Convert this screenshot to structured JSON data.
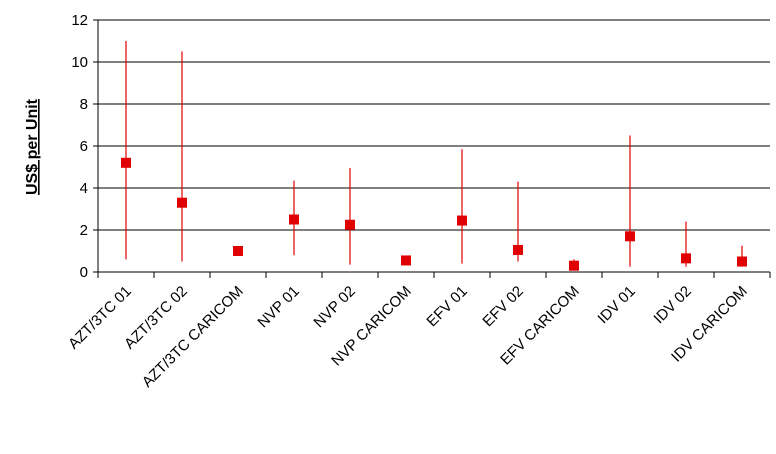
{
  "chart_data": {
    "type": "scatter",
    "title": "",
    "xlabel": "",
    "ylabel": "US$ per Unit",
    "ylim": [
      0,
      12
    ],
    "yticks": [
      0,
      2,
      4,
      6,
      8,
      10,
      12
    ],
    "grid": true,
    "categories": [
      "AZT/3TC 01",
      "AZT/3TC 02",
      "AZT/3TC CARICOM",
      "NVP 01",
      "NVP 02",
      "NVP CARICOM",
      "EFV 01",
      "EFV 02",
      "EFV CARICOM",
      "IDV 01",
      "IDV 02",
      "IDV CARICOM"
    ],
    "series": [
      {
        "values": [
          5.2,
          3.3,
          1.0,
          2.5,
          2.25,
          0.55,
          2.45,
          1.05,
          0.3,
          1.7,
          0.65,
          0.5
        ],
        "low": [
          0.6,
          0.5,
          null,
          0.8,
          0.35,
          0.35,
          0.4,
          0.5,
          0.1,
          0.25,
          0.25,
          0.25
        ],
        "high": [
          11.0,
          10.5,
          null,
          4.35,
          4.95,
          0.75,
          5.85,
          4.3,
          0.6,
          6.5,
          2.4,
          1.25
        ],
        "color": "#e00000"
      }
    ],
    "marker_color": "#e00000",
    "range_color": "#e00000"
  }
}
